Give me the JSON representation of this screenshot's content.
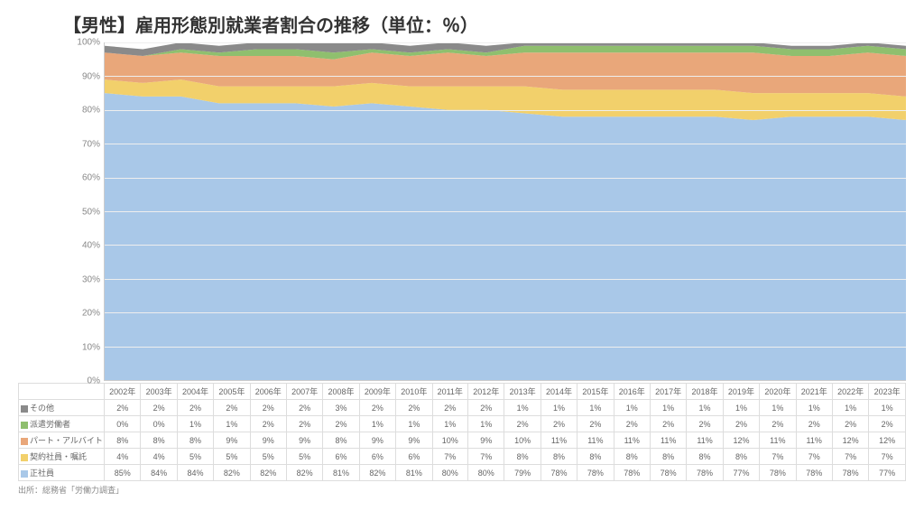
{
  "title": "【男性】雇用形態別就業者割合の推移（単位：％）",
  "source": "出所：総務省「労働力調査」",
  "chart": {
    "type": "stacked-area",
    "ylim": [
      0,
      100
    ],
    "ytick_step": 10,
    "y_suffix": "%",
    "background_color": "#ffffff",
    "grid_color": "#eeeeee",
    "axis_color": "#cccccc",
    "label_fontsize": 10,
    "years": [
      "2002年",
      "2003年",
      "2004年",
      "2005年",
      "2006年",
      "2007年",
      "2008年",
      "2009年",
      "2010年",
      "2011年",
      "2012年",
      "2013年",
      "2014年",
      "2015年",
      "2016年",
      "2017年",
      "2018年",
      "2019年",
      "2020年",
      "2021年",
      "2022年",
      "2023年"
    ],
    "series": [
      {
        "key": "other",
        "label": "その他",
        "color": "#8a8a8a",
        "values": [
          2,
          2,
          2,
          2,
          2,
          2,
          3,
          2,
          2,
          2,
          2,
          1,
          1,
          1,
          1,
          1,
          1,
          1,
          1,
          1,
          1,
          1
        ]
      },
      {
        "key": "dispatch",
        "label": "派遣労働者",
        "color": "#8fbf6e",
        "values": [
          0,
          0,
          1,
          1,
          2,
          2,
          2,
          1,
          1,
          1,
          1,
          2,
          2,
          2,
          2,
          2,
          2,
          2,
          2,
          2,
          2,
          2
        ]
      },
      {
        "key": "part",
        "label": "パート・アルバイト",
        "color": "#e9a77a",
        "values": [
          8,
          8,
          8,
          9,
          9,
          9,
          8,
          9,
          9,
          10,
          9,
          10,
          11,
          11,
          11,
          11,
          11,
          12,
          11,
          11,
          12,
          12
        ]
      },
      {
        "key": "contract",
        "label": "契約社員・嘱託",
        "color": "#f2d06b",
        "values": [
          4,
          4,
          5,
          5,
          5,
          5,
          6,
          6,
          6,
          7,
          7,
          8,
          8,
          8,
          8,
          8,
          8,
          8,
          7,
          7,
          7,
          7
        ]
      },
      {
        "key": "regular",
        "label": "正社員",
        "color": "#a9c8e8",
        "values": [
          85,
          84,
          84,
          82,
          82,
          82,
          81,
          82,
          81,
          80,
          80,
          79,
          78,
          78,
          78,
          78,
          78,
          77,
          78,
          78,
          78,
          77
        ]
      }
    ]
  }
}
